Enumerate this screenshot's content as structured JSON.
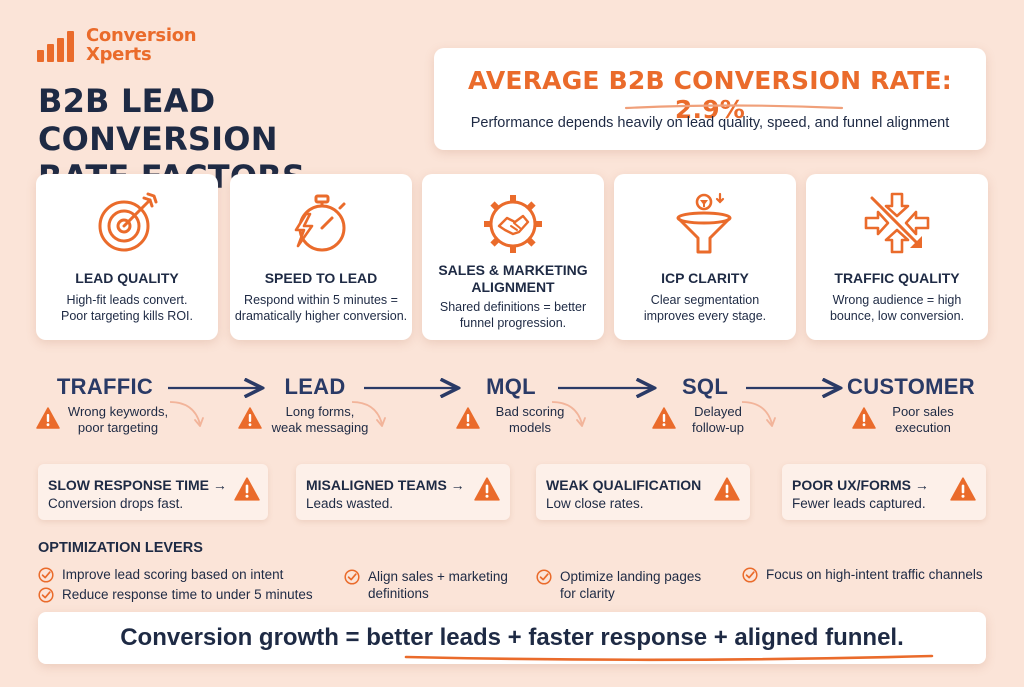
{
  "brand": {
    "name_line1": "Conversion",
    "name_line2": "Xperts",
    "accent": "#ea6b2b",
    "navy": "#1e2a44"
  },
  "title": {
    "line1": "B2B LEAD CONVERSION",
    "line2": "RATE FACTORS"
  },
  "stat": {
    "headline": "AVERAGE B2B CONVERSION RATE: 2.9%",
    "subtitle": "Performance depends heavily on lead quality, speed, and funnel alignment"
  },
  "factors": [
    {
      "icon": "target-icon",
      "title": "LEAD QUALITY",
      "desc1": "High-fit leads convert.",
      "desc2": "Poor targeting kills ROI."
    },
    {
      "icon": "stopwatch-icon",
      "title": "SPEED TO LEAD",
      "desc1": "Respond within 5 minutes =",
      "desc2": "dramatically higher conversion."
    },
    {
      "icon": "gear-handshake-icon",
      "title1": "SALES & MARKETING",
      "title2": "ALIGNMENT",
      "desc1": "Shared definitions = better",
      "desc2": "funnel progression."
    },
    {
      "icon": "funnel-icon",
      "title": "ICP CLARITY",
      "desc1": "Clear segmentation",
      "desc2": "improves every stage."
    },
    {
      "icon": "arrows-icon",
      "title": "TRAFFIC QUALITY",
      "desc1": "Wrong audience = high",
      "desc2": "bounce, low conversion."
    }
  ],
  "funnel": {
    "stages": [
      "TRAFFIC",
      "LEAD",
      "MQL",
      "SQL",
      "CUSTOMER"
    ],
    "issues": [
      {
        "line1": "Wrong keywords,",
        "line2": "poor targeting"
      },
      {
        "line1": "Long forms,",
        "line2": "weak messaging"
      },
      {
        "line1": "Bad scoring",
        "line2": "models"
      },
      {
        "line1": "Delayed",
        "line2": "follow-up"
      },
      {
        "line1": "Poor sales",
        "line2": "execution"
      }
    ]
  },
  "problems": [
    {
      "title": "SLOW RESPONSE TIME →",
      "sub": "Conversion drops fast."
    },
    {
      "title": "MISALIGNED TEAMS →",
      "sub": "Leads wasted."
    },
    {
      "title": "WEAK QUALIFICATION",
      "sub": "Low close rates."
    },
    {
      "title": "POOR UX/FORMS →",
      "sub": "Fewer leads captured."
    }
  ],
  "levers": {
    "heading": "OPTIMIZATION LEVERS",
    "items": [
      {
        "line1": "Improve lead scoring based on intent",
        "line2": ""
      },
      {
        "line1": "Reduce response time to under 5 minutes",
        "line2": ""
      },
      {
        "line1": "Align sales + marketing",
        "line2": "definitions"
      },
      {
        "line1": "Optimize landing pages",
        "line2": "for clarity"
      },
      {
        "line1": "Focus on high-intent traffic channels",
        "line2": ""
      }
    ]
  },
  "banner": {
    "lead": "Conversion growth = ",
    "emphasis": "better leads + faster response + aligned funnel",
    "end": "."
  }
}
